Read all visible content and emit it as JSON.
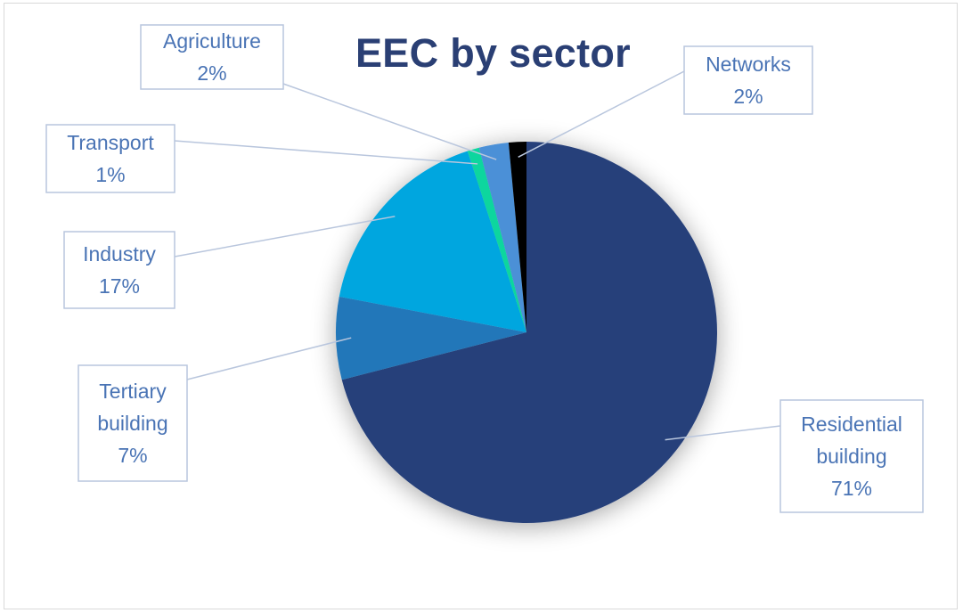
{
  "chart_data": {
    "type": "pie",
    "title": "EEC by sector",
    "slices": [
      {
        "label": "Residential building",
        "value": 71,
        "percent_label": "71%",
        "color": "#28417a"
      },
      {
        "label": "Tertiary building",
        "value": 7,
        "percent_label": "7%",
        "color": "#2277b9"
      },
      {
        "label": "Industry",
        "value": 17,
        "percent_label": "17%",
        "color": "#03a6df"
      },
      {
        "label": "Transport",
        "value": 1,
        "percent_label": "1%",
        "color": "#09d69e"
      },
      {
        "label": "Agriculture",
        "value": 2.5,
        "percent_label": "2%",
        "color": "#4b90d7"
      },
      {
        "label": "Networks",
        "value": 1.5,
        "percent_label": "2%",
        "color": "#050505"
      }
    ]
  }
}
